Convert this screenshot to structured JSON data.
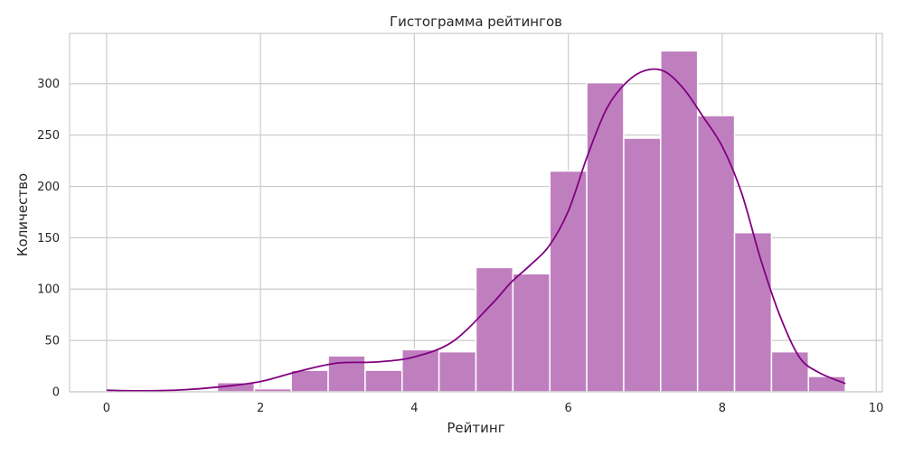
{
  "chart_data": {
    "type": "bar",
    "title": "Гистограмма рейтингов",
    "xlabel": "Рейтинг",
    "ylabel": "Количество",
    "xlim": [
      -0.48,
      10.08
    ],
    "ylim": [
      0,
      349
    ],
    "xticks": [
      0,
      2,
      4,
      6,
      8,
      10
    ],
    "yticks": [
      0,
      50,
      100,
      150,
      200,
      250,
      300
    ],
    "grid": true,
    "legend": "none",
    "bins": [
      {
        "x0": 0.0,
        "x1": 0.48,
        "count": 1
      },
      {
        "x0": 0.48,
        "x1": 0.96,
        "count": 0
      },
      {
        "x0": 0.96,
        "x1": 1.44,
        "count": 0
      },
      {
        "x0": 1.44,
        "x1": 1.92,
        "count": 9
      },
      {
        "x0": 1.92,
        "x1": 2.4,
        "count": 3
      },
      {
        "x0": 2.4,
        "x1": 2.88,
        "count": 21
      },
      {
        "x0": 2.88,
        "x1": 3.36,
        "count": 35
      },
      {
        "x0": 3.36,
        "x1": 3.84,
        "count": 21
      },
      {
        "x0": 3.84,
        "x1": 4.32,
        "count": 41
      },
      {
        "x0": 4.32,
        "x1": 4.8,
        "count": 39
      },
      {
        "x0": 4.8,
        "x1": 5.28,
        "count": 121
      },
      {
        "x0": 5.28,
        "x1": 5.76,
        "count": 115
      },
      {
        "x0": 5.76,
        "x1": 6.24,
        "count": 215
      },
      {
        "x0": 6.24,
        "x1": 6.72,
        "count": 301
      },
      {
        "x0": 6.72,
        "x1": 7.2,
        "count": 247
      },
      {
        "x0": 7.2,
        "x1": 7.68,
        "count": 332
      },
      {
        "x0": 7.68,
        "x1": 8.16,
        "count": 269
      },
      {
        "x0": 8.16,
        "x1": 8.64,
        "count": 155
      },
      {
        "x0": 8.64,
        "x1": 9.12,
        "count": 39
      },
      {
        "x0": 9.12,
        "x1": 9.6,
        "count": 15
      }
    ],
    "kde": {
      "x": [
        0.0,
        0.5,
        1.0,
        1.5,
        2.0,
        2.5,
        3.0,
        3.5,
        4.0,
        4.5,
        5.0,
        5.25,
        5.5,
        5.75,
        6.0,
        6.25,
        6.5,
        6.75,
        7.0,
        7.25,
        7.5,
        7.75,
        8.0,
        8.25,
        8.5,
        8.75,
        9.0,
        9.25,
        9.6
      ],
      "y": [
        1.5,
        1,
        2,
        5,
        10,
        20,
        28,
        29,
        34,
        49,
        85,
        106,
        123,
        142,
        176,
        230,
        276,
        301,
        313,
        312,
        295,
        268,
        239,
        194,
        129,
        74,
        34,
        19,
        8
      ]
    },
    "colors": {
      "bar_fill": "#bf7fbf",
      "bar_edge": "#ffffff",
      "kde_line": "#800080",
      "grid": "#cccccc",
      "axes_edge": "#cccccc",
      "text": "#262626"
    }
  }
}
